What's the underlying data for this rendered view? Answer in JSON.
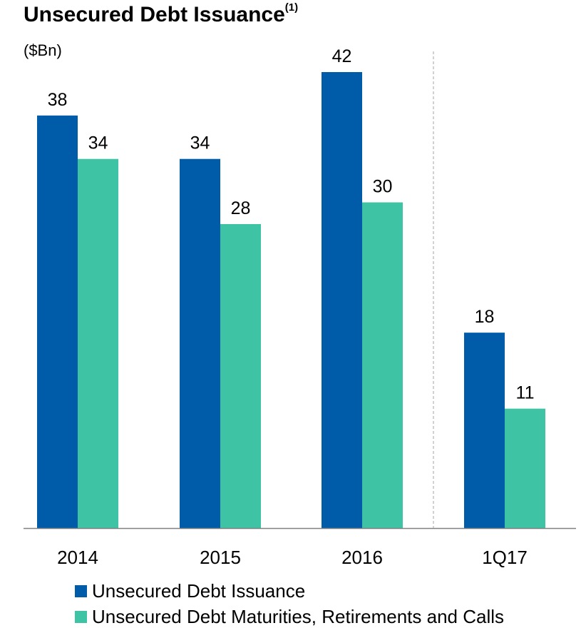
{
  "chart_data": {
    "type": "bar",
    "title": "Unsecured Debt Issuance",
    "title_footnote": "(1)",
    "subtitle": "($Bn)",
    "categories": [
      "2014",
      "2015",
      "2016",
      "1Q17"
    ],
    "series": [
      {
        "name": "Unsecured Debt Issuance",
        "color": "#005CA9",
        "values": [
          38,
          34,
          42,
          18
        ]
      },
      {
        "name": "Unsecured Debt Maturities, Retirements and Calls",
        "color": "#3EC4A4",
        "values": [
          34,
          28,
          30,
          11
        ]
      }
    ],
    "ylim": [
      0,
      42
    ],
    "grid": false,
    "divider_before_category": "1Q17",
    "legend_position": "bottom-left"
  }
}
